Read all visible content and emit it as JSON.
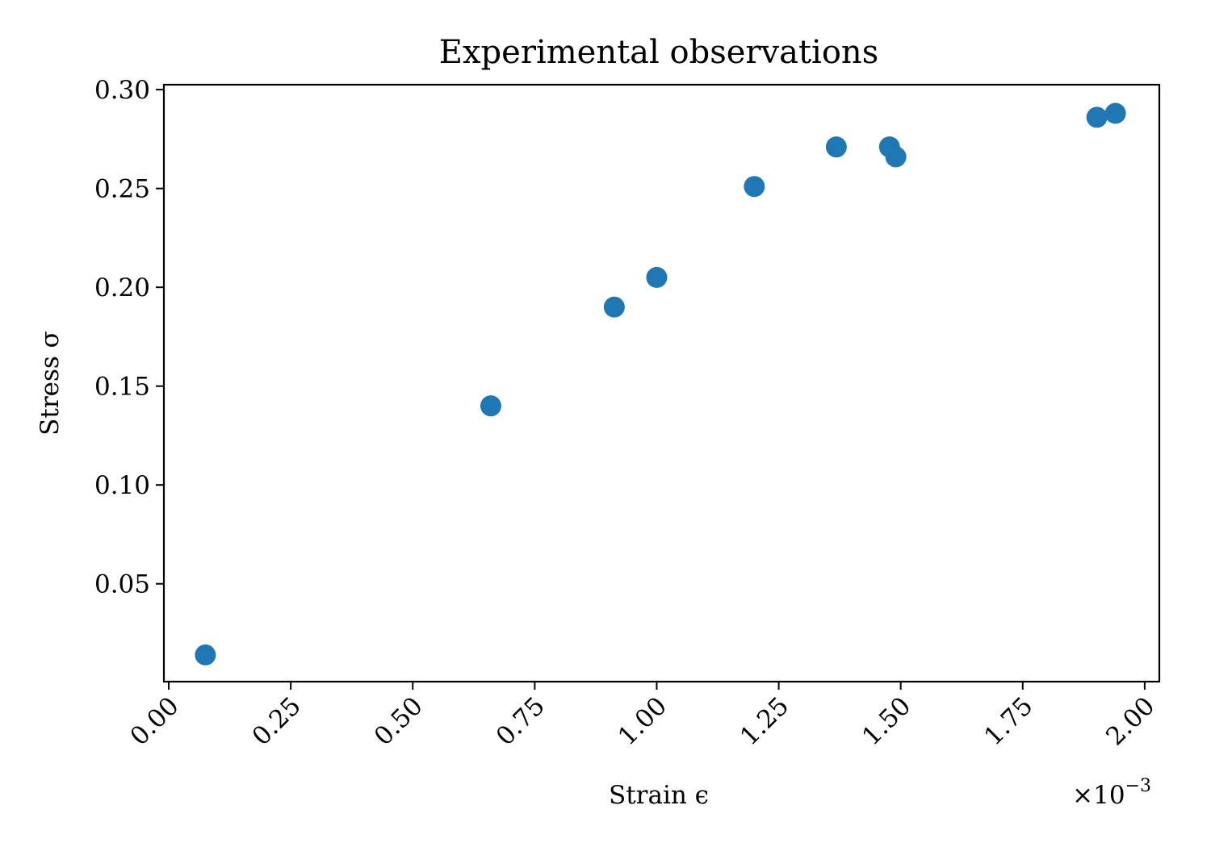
{
  "chart_data": {
    "type": "scatter",
    "title": "Experimental observations",
    "xlabel": "Strain ϵ",
    "ylabel": "Stress σ",
    "x_offset_label": "×10",
    "x_offset_exponent": "−3",
    "xlim": [
      -1e-05,
      0.00203
    ],
    "ylim": [
      0.0005,
      0.3025
    ],
    "x_ticks": [
      0.0,
      0.00025,
      0.0005,
      0.00075,
      0.001,
      0.00125,
      0.0015,
      0.00175,
      0.002
    ],
    "x_tick_labels": [
      "0.00",
      "0.25",
      "0.50",
      "0.75",
      "1.00",
      "1.25",
      "1.50",
      "1.75",
      "2.00"
    ],
    "y_ticks": [
      0.05,
      0.1,
      0.15,
      0.2,
      0.25,
      0.3
    ],
    "y_tick_labels": [
      "0.05",
      "0.10",
      "0.15",
      "0.20",
      "0.25",
      "0.30"
    ],
    "marker_color": "#1f77b4",
    "grid": false,
    "points": [
      {
        "x": 7.5e-05,
        "y": 0.014
      },
      {
        "x": 0.00066,
        "y": 0.14
      },
      {
        "x": 0.000913,
        "y": 0.19
      },
      {
        "x": 0.001,
        "y": 0.205
      },
      {
        "x": 0.0012,
        "y": 0.251
      },
      {
        "x": 0.001368,
        "y": 0.271
      },
      {
        "x": 0.001477,
        "y": 0.271
      },
      {
        "x": 0.00149,
        "y": 0.266
      },
      {
        "x": 0.001902,
        "y": 0.286
      },
      {
        "x": 0.00194,
        "y": 0.288
      }
    ]
  }
}
